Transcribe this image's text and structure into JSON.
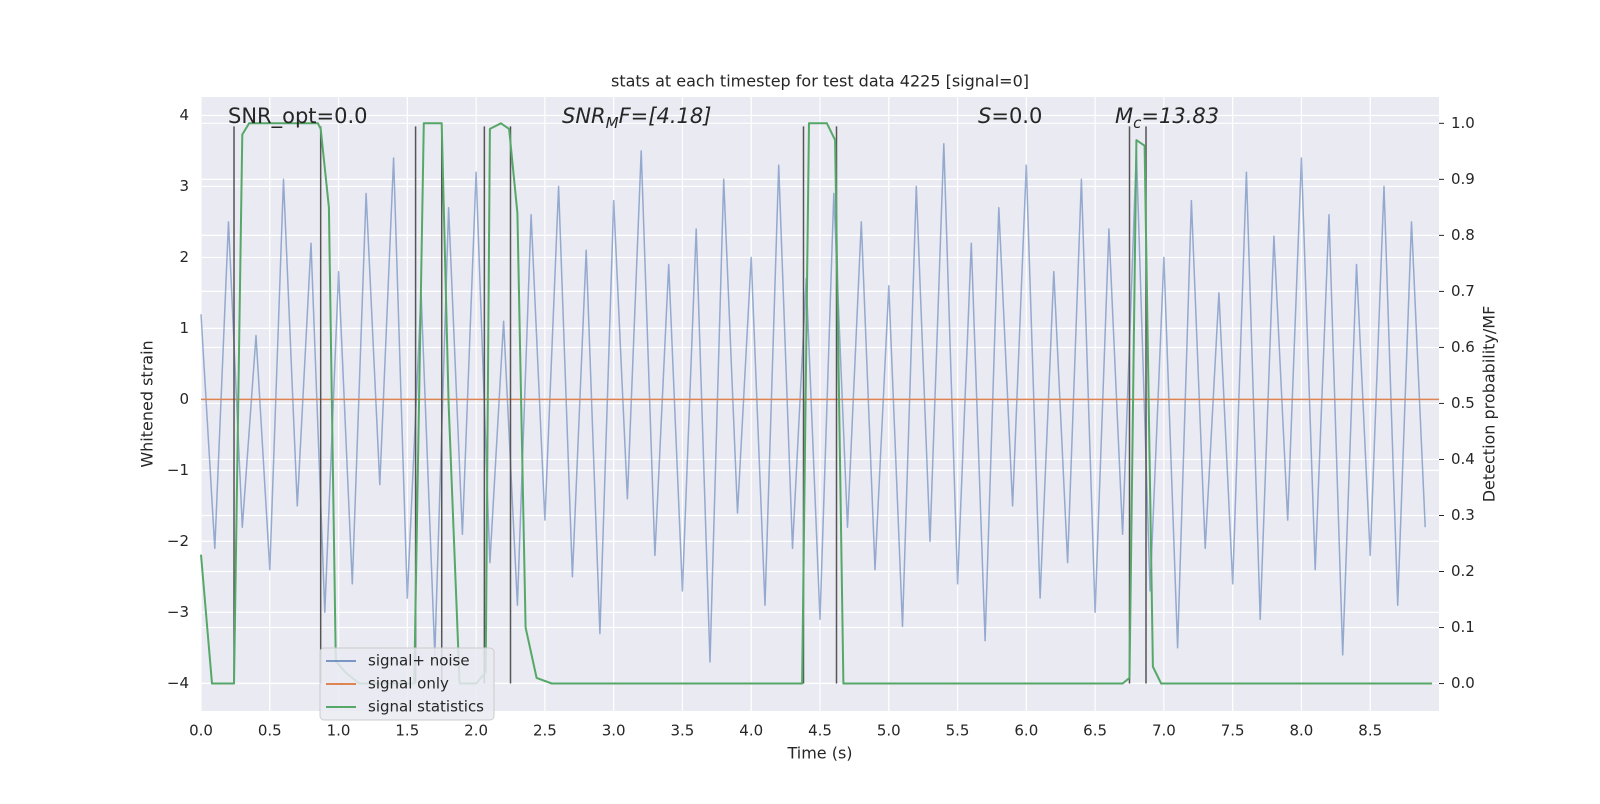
{
  "chart_data": {
    "type": "line",
    "title": "stats at each timestep for test data 4225 [signal=0]",
    "xlabel": "Time (s)",
    "ylabel": "Whitened strain",
    "y2label": "Detection probability/MF",
    "xlim": [
      0,
      9.0
    ],
    "ylim": [
      -4.39,
      4.26
    ],
    "y2lim": [
      -0.049,
      1.047
    ],
    "xticks": [
      {
        "value": 0,
        "label": "0.0"
      },
      {
        "value": 0.5,
        "label": "0.5"
      },
      {
        "value": 1,
        "label": "1.0"
      },
      {
        "value": 1.5,
        "label": "1.5"
      },
      {
        "value": 2,
        "label": "2.0"
      },
      {
        "value": 2.5,
        "label": "2.5"
      },
      {
        "value": 3,
        "label": "3.0"
      },
      {
        "value": 3.5,
        "label": "3.5"
      },
      {
        "value": 4,
        "label": "4.0"
      },
      {
        "value": 4.5,
        "label": "4.5"
      },
      {
        "value": 5,
        "label": "5.0"
      },
      {
        "value": 5.5,
        "label": "5.5"
      },
      {
        "value": 6,
        "label": "6.0"
      },
      {
        "value": 6.5,
        "label": "6.5"
      },
      {
        "value": 7,
        "label": "7.0"
      },
      {
        "value": 7.5,
        "label": "7.5"
      },
      {
        "value": 8,
        "label": "8.0"
      },
      {
        "value": 8.5,
        "label": "8.5"
      }
    ],
    "yticks": [
      {
        "value": -4,
        "label": "−4"
      },
      {
        "value": -3,
        "label": "−3"
      },
      {
        "value": -2,
        "label": "−2"
      },
      {
        "value": -1,
        "label": "−1"
      },
      0,
      1,
      2,
      3,
      4
    ],
    "y2ticks": [
      {
        "value": 0,
        "label": "0.0"
      },
      {
        "value": 0.1,
        "label": "0.1"
      },
      {
        "value": 0.2,
        "label": "0.2"
      },
      {
        "value": 0.3,
        "label": "0.3"
      },
      {
        "value": 0.4,
        "label": "0.4"
      },
      {
        "value": 0.5,
        "label": "0.5"
      },
      {
        "value": 0.6,
        "label": "0.6"
      },
      {
        "value": 0.7,
        "label": "0.7"
      },
      {
        "value": 0.8,
        "label": "0.8"
      },
      {
        "value": 0.9,
        "label": "0.9"
      },
      {
        "value": 1,
        "label": "1.0"
      }
    ],
    "grid": true,
    "legend": "lower left",
    "annotations": [
      {
        "main": "SNR_opt=0.0"
      },
      {
        "main": "SNR",
        "sub": "M",
        "rest": "F=[4.18]"
      },
      {
        "main": "S",
        "rest": "=0.0"
      },
      {
        "main": "M",
        "sub": "c",
        "rest": "=13.83"
      }
    ],
    "vlines": [
      0.24,
      0.87,
      1.56,
      1.75,
      2.06,
      2.25,
      4.38,
      4.62,
      6.75,
      6.87
    ],
    "vline_color": "#555555",
    "series": [
      {
        "name": "signal+ noise",
        "color": "#4c72b0",
        "axis": "y",
        "x": [
          0.0,
          0.1,
          0.2,
          0.3,
          0.4,
          0.5,
          0.6,
          0.7,
          0.8,
          0.9,
          1.0,
          1.1,
          1.2,
          1.3,
          1.4,
          1.5,
          1.6,
          1.7,
          1.8,
          1.9,
          2.0,
          2.1,
          2.2,
          2.3,
          2.4,
          2.5,
          2.6,
          2.7,
          2.8,
          2.9,
          3.0,
          3.1,
          3.2,
          3.3,
          3.4,
          3.5,
          3.6,
          3.7,
          3.8,
          3.9,
          4.0,
          4.1,
          4.2,
          4.3,
          4.4,
          4.5,
          4.6,
          4.7,
          4.8,
          4.9,
          5.0,
          5.1,
          5.2,
          5.3,
          5.4,
          5.5,
          5.6,
          5.7,
          5.8,
          5.9,
          6.0,
          6.1,
          6.2,
          6.3,
          6.4,
          6.5,
          6.6,
          6.7,
          6.8,
          6.9,
          7.0,
          7.1,
          7.2,
          7.3,
          7.4,
          7.5,
          7.6,
          7.7,
          7.8,
          7.9,
          8.0,
          8.1,
          8.2,
          8.3,
          8.4,
          8.5,
          8.6,
          8.7,
          8.8,
          8.9
        ],
        "values": [
          1.2,
          -2.1,
          2.5,
          -1.8,
          0.9,
          -2.4,
          3.1,
          -1.5,
          2.2,
          -3.0,
          1.8,
          -2.6,
          2.9,
          -1.2,
          3.4,
          -2.8,
          1.5,
          -3.6,
          2.7,
          -1.9,
          3.2,
          -2.3,
          1.1,
          -2.9,
          2.6,
          -1.7,
          3.0,
          -2.5,
          2.1,
          -3.3,
          2.8,
          -1.4,
          3.5,
          -2.2,
          1.9,
          -2.7,
          2.4,
          -3.7,
          3.1,
          -1.6,
          2.0,
          -2.9,
          3.3,
          -2.1,
          1.7,
          -3.1,
          2.9,
          -1.8,
          2.5,
          -2.4,
          1.6,
          -3.2,
          3.0,
          -2.0,
          3.6,
          -2.6,
          2.2,
          -3.4,
          2.7,
          -1.5,
          3.3,
          -2.8,
          1.8,
          -2.3,
          3.1,
          -3.0,
          2.4,
          -1.9,
          3.5,
          -2.7,
          2.0,
          -3.5,
          2.8,
          -2.1,
          1.5,
          -2.6,
          3.2,
          -3.1,
          2.3,
          -1.7,
          3.4,
          -2.4,
          2.6,
          -3.6,
          1.9,
          -2.2,
          3.0,
          -2.9,
          2.5,
          -1.8
        ]
      },
      {
        "name": "signal only",
        "color": "#dd8452",
        "axis": "y",
        "x": [
          0.0,
          9.0
        ],
        "values": [
          0,
          0
        ]
      },
      {
        "name": "signal statistics",
        "color": "#55a868",
        "axis": "y2",
        "x": [
          0.0,
          0.08,
          0.24,
          0.3,
          0.35,
          0.85,
          0.87,
          0.93,
          0.98,
          1.05,
          1.15,
          1.55,
          1.62,
          1.75,
          1.8,
          1.88,
          2.0,
          2.07,
          2.1,
          2.18,
          2.24,
          2.3,
          2.36,
          2.44,
          2.55,
          4.37,
          4.42,
          4.55,
          4.61,
          4.67,
          5.0,
          6.7,
          6.75,
          6.8,
          6.86,
          6.92,
          6.98,
          7.75,
          8.95
        ],
        "values": [
          0.23,
          0.0,
          0.0,
          0.98,
          1.0,
          1.0,
          0.99,
          0.85,
          0.04,
          0.02,
          0.0,
          0.0,
          1.0,
          1.0,
          0.5,
          0.0,
          0.0,
          0.02,
          0.99,
          1.0,
          0.99,
          0.84,
          0.1,
          0.01,
          0.0,
          0.0,
          1.0,
          1.0,
          0.97,
          0.0,
          0.0,
          0.0,
          0.01,
          0.97,
          0.96,
          0.03,
          0.0,
          0.0,
          0.0
        ]
      }
    ]
  }
}
